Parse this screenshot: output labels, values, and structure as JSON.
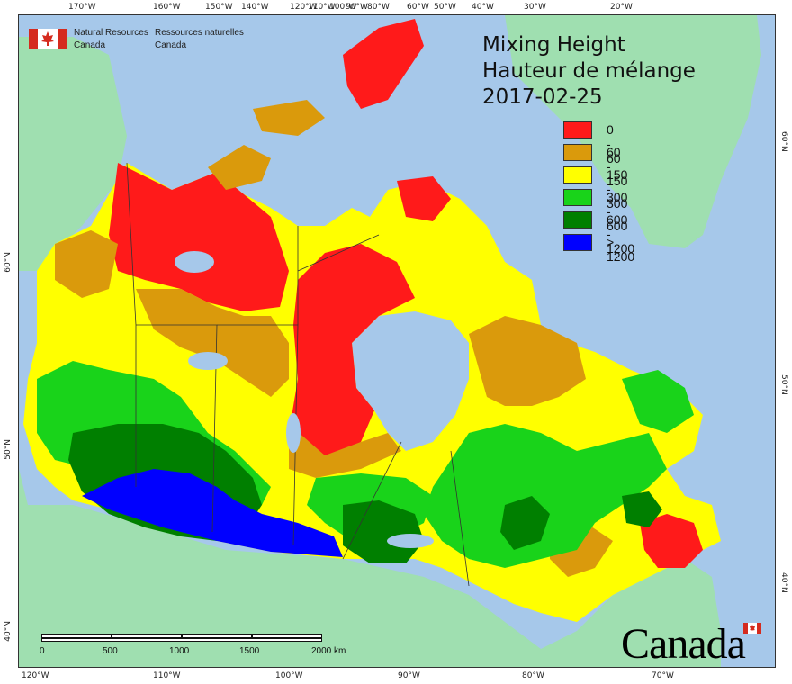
{
  "agency": {
    "name_en_line1": "Natural Resources",
    "name_en_line2": "Canada",
    "name_fr_line1": "Ressources naturelles",
    "name_fr_line2": "Canada"
  },
  "title": {
    "line1": "Mixing Height",
    "line2": "Hauteur de mélange",
    "date": "2017-02-25"
  },
  "legend": [
    {
      "label": "0 - 60",
      "color": "#ff1a1a"
    },
    {
      "label": "60 - 150",
      "color": "#da9a0c"
    },
    {
      "label": "150 - 300",
      "color": "#ffff00"
    },
    {
      "label": "300 - 600",
      "color": "#19d31a"
    },
    {
      "label": "600 - 1200",
      "color": "#007f00"
    },
    {
      "label": "> 1200",
      "color": "#0000ff"
    }
  ],
  "graticule": {
    "top": [
      "170°W",
      "160°W",
      "150°W",
      "140°W",
      "120°W",
      "110°W",
      "100°W",
      "90°W",
      "80°W",
      "60°W",
      "50°W",
      "40°W",
      "30°W",
      "20°W"
    ],
    "bottom": [
      "120°W",
      "110°W",
      "100°W",
      "90°W",
      "80°W",
      "70°W"
    ],
    "left": [
      "60°N",
      "50°N",
      "40°N"
    ],
    "right": [
      "60°N",
      "50°N",
      "40°N"
    ]
  },
  "scale_bar": {
    "labels": [
      "0",
      "500",
      "1000",
      "1500",
      "2000 km"
    ]
  },
  "wordmark": "Canada",
  "colors": {
    "ocean": "#a6c8ea",
    "foreign_land": "#9fdfb0",
    "borders": "#333333"
  }
}
